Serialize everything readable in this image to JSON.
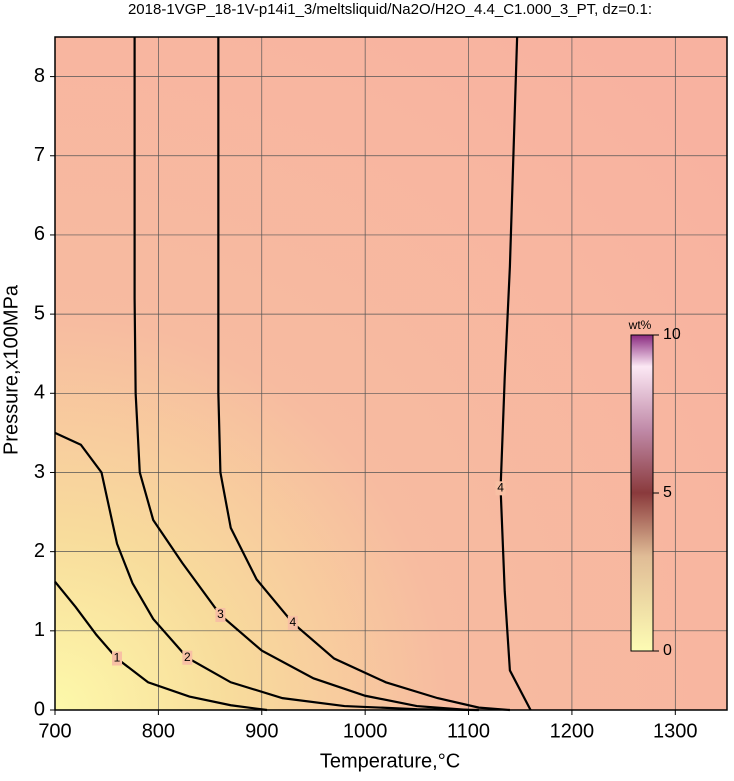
{
  "chart_data": {
    "type": "contour",
    "title": "2018-1VGP_18-1V-p14i1_3/meltsliquid/Na2O/H2O_4.4_C1.000_3_PT, dz=0.1:",
    "x_label": "Temperature,°C",
    "y_label": "Pressure,x100MPa",
    "xlim": [
      700,
      1350
    ],
    "ylim": [
      0,
      8.5
    ],
    "xticks": [
      700,
      800,
      900,
      1000,
      1100,
      1200,
      1300
    ],
    "yticks": [
      0,
      1,
      2,
      3,
      4,
      5,
      6,
      7,
      8
    ],
    "grid": true,
    "contours": [
      {
        "level": 1,
        "x": [
          700,
          720,
          740,
          760,
          790,
          830,
          870,
          905
        ],
        "y": [
          1.62,
          1.3,
          0.95,
          0.65,
          0.35,
          0.17,
          0.06,
          0
        ]
      },
      {
        "level": 2,
        "x": [
          700,
          725,
          745,
          760,
          775,
          795,
          828,
          870,
          920,
          980,
          1050,
          1110
        ],
        "y": [
          3.5,
          3.35,
          3.0,
          2.1,
          1.6,
          1.15,
          0.66,
          0.35,
          0.15,
          0.05,
          0.01,
          0
        ]
      },
      {
        "level": 3,
        "x": [
          777,
          777,
          778,
          782,
          795,
          823,
          860,
          900,
          950,
          1000,
          1050,
          1100
        ],
        "y": [
          8.5,
          5.2,
          4,
          3,
          2.4,
          1.86,
          1.2,
          0.75,
          0.4,
          0.18,
          0.05,
          0
        ]
      },
      {
        "level": 4,
        "x": [
          858,
          858,
          858,
          860,
          870,
          895,
          930,
          970,
          1020,
          1070,
          1110,
          1140
        ],
        "y": [
          8.5,
          5.1,
          4,
          3,
          2.3,
          1.65,
          1.1,
          0.65,
          0.35,
          0.15,
          0.03,
          0
        ]
      },
      {
        "level": 4,
        "x": [
          1147,
          1140,
          1135,
          1131,
          1135,
          1140,
          1160
        ],
        "y": [
          8.5,
          5.6,
          4.2,
          2.8,
          1.5,
          0.5,
          0
        ]
      }
    ],
    "colorbar": {
      "label": "wt%",
      "lim": [
        0,
        10
      ],
      "ticks": [
        0,
        5,
        10
      ]
    }
  }
}
